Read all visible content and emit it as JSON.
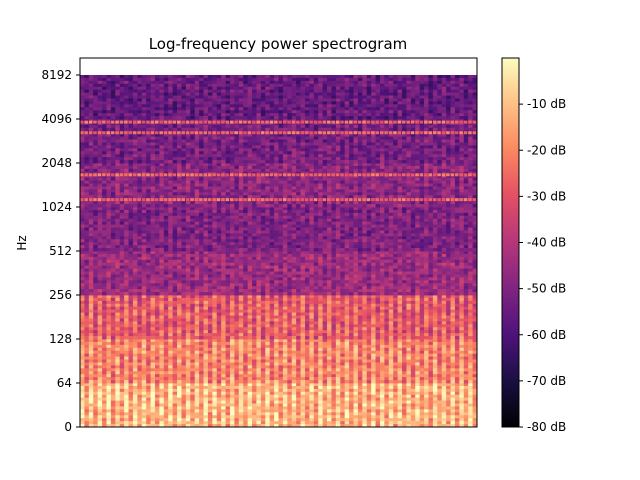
{
  "chart_data": {
    "type": "heatmap",
    "title": "Log-frequency power spectrogram",
    "xlabel": "",
    "ylabel": "Hz",
    "y_scale": "log2",
    "y_ticks": [
      "0",
      "64",
      "128",
      "256",
      "512",
      "1024",
      "2048",
      "4096",
      "8192"
    ],
    "colorbar": {
      "colormap": "magma",
      "range_db": [
        -80,
        0
      ],
      "ticks": [
        "-10 dB",
        "-20 dB",
        "-30 dB",
        "-40 dB",
        "-50 dB",
        "-60 dB",
        "-70 dB",
        "-80 dB"
      ],
      "tick_values": [
        -10,
        -20,
        -30,
        -40,
        -50,
        -60,
        -70,
        -80
      ]
    },
    "bands": [
      {
        "from_hz": 0,
        "to_hz": 64,
        "level_db": -12
      },
      {
        "from_hz": 64,
        "to_hz": 128,
        "level_db": -20
      },
      {
        "from_hz": 128,
        "to_hz": 256,
        "level_db": -28
      },
      {
        "from_hz": 256,
        "to_hz": 512,
        "level_db": -45
      },
      {
        "from_hz": 512,
        "to_hz": 1024,
        "level_db": -50
      },
      {
        "from_hz": 1024,
        "to_hz": 2048,
        "level_db": -48
      },
      {
        "from_hz": 2048,
        "to_hz": 4096,
        "level_db": -52
      },
      {
        "from_hz": 4096,
        "to_hz": 8192,
        "level_db": -55
      }
    ],
    "harmonic_lines_hz": [
      1150,
      1700,
      3300,
      3900
    ],
    "grid": false
  }
}
